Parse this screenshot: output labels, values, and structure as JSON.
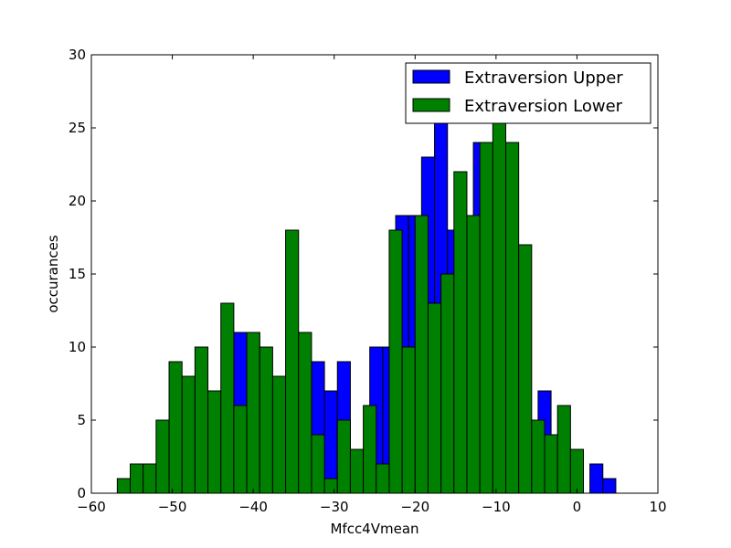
{
  "chart_data": {
    "type": "bar",
    "title": "",
    "xlabel": "Mfcc4Vmean",
    "ylabel": "occurances",
    "xlim": [
      -60,
      10
    ],
    "ylim": [
      0,
      30
    ],
    "xticks": [
      -60,
      -50,
      -40,
      -30,
      -20,
      -10,
      0,
      10
    ],
    "yticks": [
      0,
      5,
      10,
      15,
      20,
      25,
      30
    ],
    "grid": false,
    "legend_position": "top-right",
    "bin_width": 1.6,
    "series": [
      {
        "name": "Extraversion Upper",
        "color": "#0000ff",
        "bins": [
          {
            "x": -42.4,
            "value": 11
          },
          {
            "x": -40.8,
            "value": 11
          },
          {
            "x": -32.8,
            "value": 9
          },
          {
            "x": -31.2,
            "value": 7
          },
          {
            "x": -29.6,
            "value": 9
          },
          {
            "x": -25.6,
            "value": 10
          },
          {
            "x": -24.0,
            "value": 10
          },
          {
            "x": -22.4,
            "value": 19
          },
          {
            "x": -20.8,
            "value": 19
          },
          {
            "x": -19.2,
            "value": 23
          },
          {
            "x": -17.6,
            "value": 26
          },
          {
            "x": -16.0,
            "value": 18
          },
          {
            "x": -12.8,
            "value": 24
          },
          {
            "x": -4.8,
            "value": 7
          },
          {
            "x": 1.6,
            "value": 2
          },
          {
            "x": 3.2,
            "value": 1
          }
        ]
      },
      {
        "name": "Extraversion Lower",
        "color": "#008000",
        "bins": [
          {
            "x": -56.8,
            "value": 1
          },
          {
            "x": -55.2,
            "value": 2
          },
          {
            "x": -53.6,
            "value": 2
          },
          {
            "x": -52.0,
            "value": 5
          },
          {
            "x": -50.4,
            "value": 9
          },
          {
            "x": -48.8,
            "value": 8
          },
          {
            "x": -47.2,
            "value": 10
          },
          {
            "x": -45.6,
            "value": 7
          },
          {
            "x": -44.0,
            "value": 13
          },
          {
            "x": -42.4,
            "value": 6
          },
          {
            "x": -40.8,
            "value": 11
          },
          {
            "x": -39.2,
            "value": 10
          },
          {
            "x": -37.6,
            "value": 8
          },
          {
            "x": -36.0,
            "value": 18
          },
          {
            "x": -34.4,
            "value": 11
          },
          {
            "x": -32.8,
            "value": 4
          },
          {
            "x": -31.2,
            "value": 1
          },
          {
            "x": -29.6,
            "value": 5
          },
          {
            "x": -28.0,
            "value": 3
          },
          {
            "x": -26.4,
            "value": 6
          },
          {
            "x": -24.8,
            "value": 2
          },
          {
            "x": -23.2,
            "value": 18
          },
          {
            "x": -21.6,
            "value": 10
          },
          {
            "x": -20.0,
            "value": 19
          },
          {
            "x": -18.4,
            "value": 13
          },
          {
            "x": -16.8,
            "value": 15
          },
          {
            "x": -15.2,
            "value": 22
          },
          {
            "x": -13.6,
            "value": 19
          },
          {
            "x": -12.0,
            "value": 24
          },
          {
            "x": -10.4,
            "value": 26
          },
          {
            "x": -8.8,
            "value": 24
          },
          {
            "x": -7.2,
            "value": 17
          },
          {
            "x": -5.6,
            "value": 5
          },
          {
            "x": -4.0,
            "value": 4
          },
          {
            "x": -2.4,
            "value": 6
          },
          {
            "x": -0.8,
            "value": 3
          }
        ]
      }
    ]
  }
}
